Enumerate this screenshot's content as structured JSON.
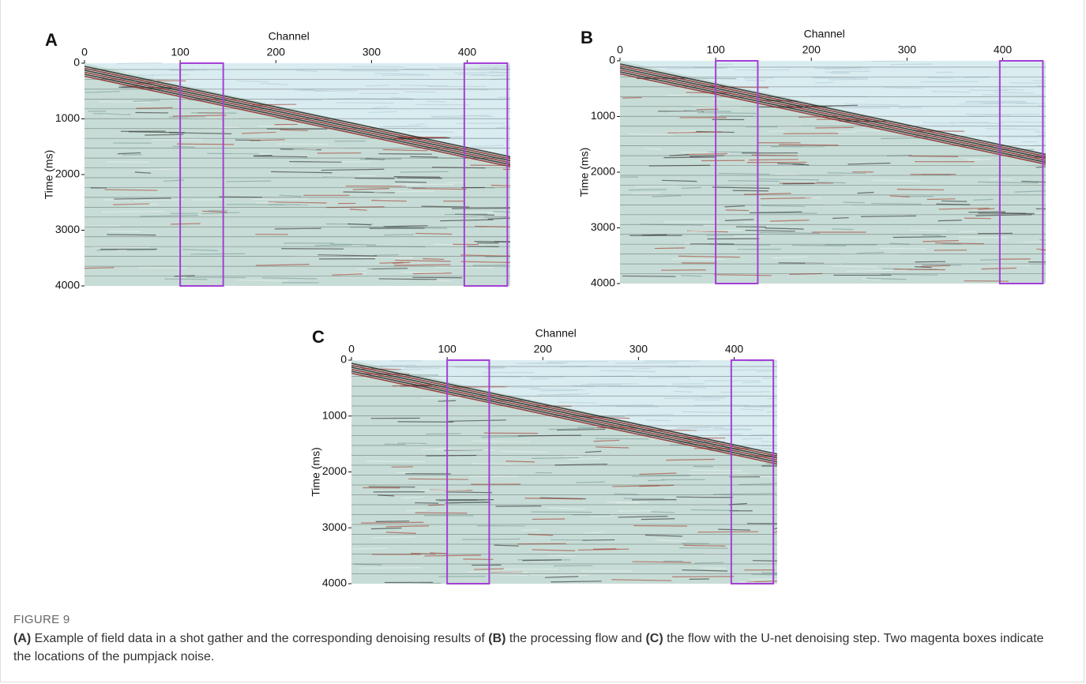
{
  "chart_data": [
    {
      "type": "seismic",
      "panel_label": "A",
      "xlabel": "Channel",
      "ylabel": "Time (ms)",
      "xlim": [
        0,
        445
      ],
      "ylim": [
        0,
        4000
      ],
      "y_inverted": true,
      "xticks": [
        0,
        100,
        200,
        300,
        400
      ],
      "yticks": [
        0,
        1000,
        2000,
        3000,
        4000
      ],
      "box_color": "#a43fd6",
      "boxes": [
        {
          "x": [
            100,
            145
          ]
        },
        {
          "x": [
            397,
            442
          ]
        }
      ]
    },
    {
      "type": "seismic",
      "panel_label": "B",
      "xlabel": "Channel",
      "ylabel": "Time (ms)",
      "xlim": [
        0,
        445
      ],
      "ylim": [
        0,
        4000
      ],
      "y_inverted": true,
      "xticks": [
        0,
        100,
        200,
        300,
        400
      ],
      "yticks": [
        0,
        1000,
        2000,
        3000,
        4000
      ],
      "box_color": "#a43fd6",
      "boxes": [
        {
          "x": [
            100,
            144
          ]
        },
        {
          "x": [
            397,
            442
          ]
        }
      ]
    },
    {
      "type": "seismic",
      "panel_label": "C",
      "xlabel": "Channel",
      "ylabel": "Time (ms)",
      "xlim": [
        0,
        445
      ],
      "ylim": [
        0,
        4000
      ],
      "y_inverted": true,
      "xticks": [
        0,
        100,
        200,
        300,
        400
      ],
      "yticks": [
        0,
        1000,
        2000,
        3000,
        4000
      ],
      "box_color": "#a43fd6",
      "boxes": [
        {
          "x": [
            100,
            144
          ]
        },
        {
          "x": [
            397,
            441
          ]
        }
      ]
    }
  ],
  "caption": {
    "label": "FIGURE 9",
    "runs": [
      {
        "text": "(A)",
        "bold": true
      },
      {
        "text": " Example of field data in a shot gather and the corresponding denoising results of "
      },
      {
        "text": "(B)",
        "bold": true
      },
      {
        "text": " the processing flow and "
      },
      {
        "text": "(C)",
        "bold": true
      },
      {
        "text": " the flow with the U-net denoising step. Two magenta boxes indicate the locations of the pumpjack noise."
      }
    ]
  }
}
